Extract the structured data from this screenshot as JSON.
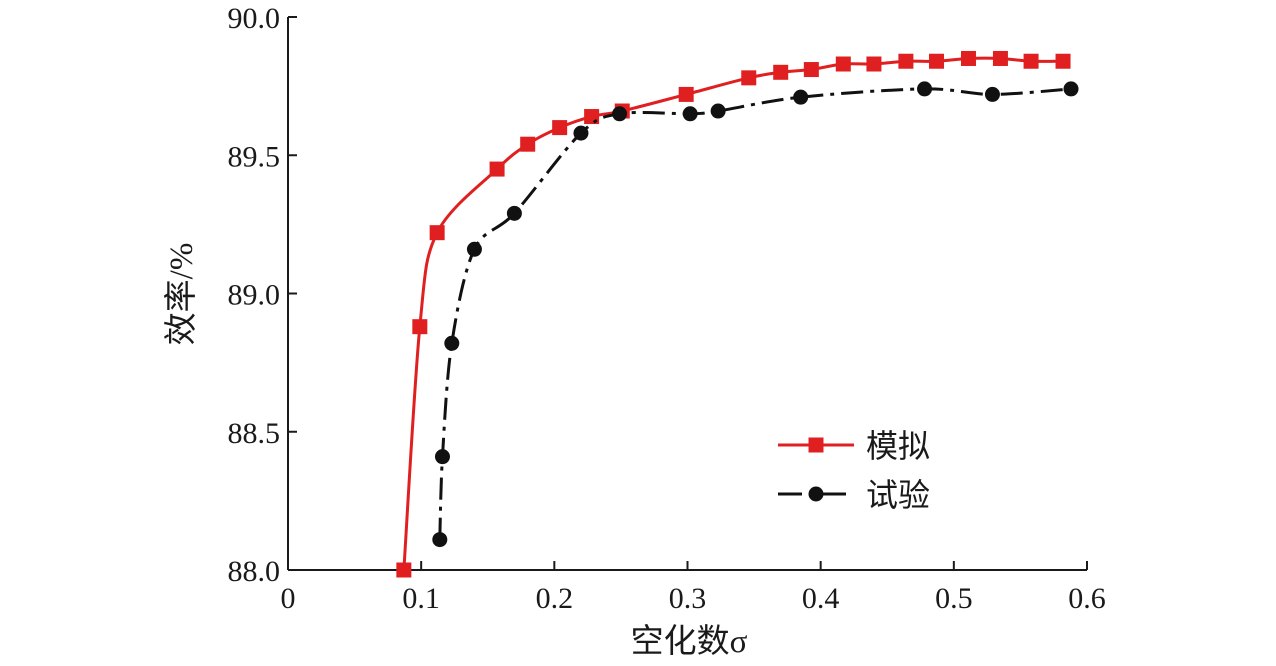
{
  "chart_data": {
    "type": "line",
    "title": "",
    "xlabel": "空化数σ",
    "ylabel": "效率/%",
    "xlim": [
      0,
      0.6
    ],
    "ylim": [
      88.0,
      90.0
    ],
    "x_ticks": [
      0,
      0.1,
      0.2,
      0.3,
      0.4,
      0.5,
      0.6
    ],
    "x_tick_labels": [
      "0",
      "0.1",
      "0.2",
      "0.3",
      "0.4",
      "0.5",
      "0.6"
    ],
    "y_ticks": [
      88.0,
      88.5,
      89.0,
      89.5,
      90.0
    ],
    "y_tick_labels": [
      "88.0",
      "88.5",
      "89.0",
      "89.5",
      "90.0"
    ],
    "grid": false,
    "legend_position": "lower-right",
    "series": [
      {
        "name": "模拟",
        "color": "#e02020",
        "line_style": "solid",
        "marker": "square",
        "points": [
          [
            0.087,
            88.0
          ],
          [
            0.099,
            88.88
          ],
          [
            0.112,
            89.22
          ],
          [
            0.157,
            89.45
          ],
          [
            0.18,
            89.54
          ],
          [
            0.204,
            89.6
          ],
          [
            0.228,
            89.64
          ],
          [
            0.251,
            89.66
          ],
          [
            0.299,
            89.72
          ],
          [
            0.346,
            89.78
          ],
          [
            0.37,
            89.8
          ],
          [
            0.393,
            89.81
          ],
          [
            0.417,
            89.83
          ],
          [
            0.44,
            89.83
          ],
          [
            0.464,
            89.84
          ],
          [
            0.487,
            89.84
          ],
          [
            0.511,
            89.85
          ],
          [
            0.535,
            89.85
          ],
          [
            0.558,
            89.84
          ],
          [
            0.582,
            89.84
          ]
        ]
      },
      {
        "name": "试验",
        "color": "#111111",
        "line_style": "dash-dot",
        "marker": "circle",
        "points": [
          [
            0.114,
            88.11
          ],
          [
            0.116,
            88.41
          ],
          [
            0.123,
            88.82
          ],
          [
            0.14,
            89.16
          ],
          [
            0.17,
            89.29
          ],
          [
            0.22,
            89.58
          ],
          [
            0.249,
            89.65
          ],
          [
            0.302,
            89.65
          ],
          [
            0.323,
            89.66
          ],
          [
            0.385,
            89.71
          ],
          [
            0.478,
            89.74
          ],
          [
            0.529,
            89.72
          ],
          [
            0.588,
            89.74
          ]
        ]
      }
    ]
  }
}
